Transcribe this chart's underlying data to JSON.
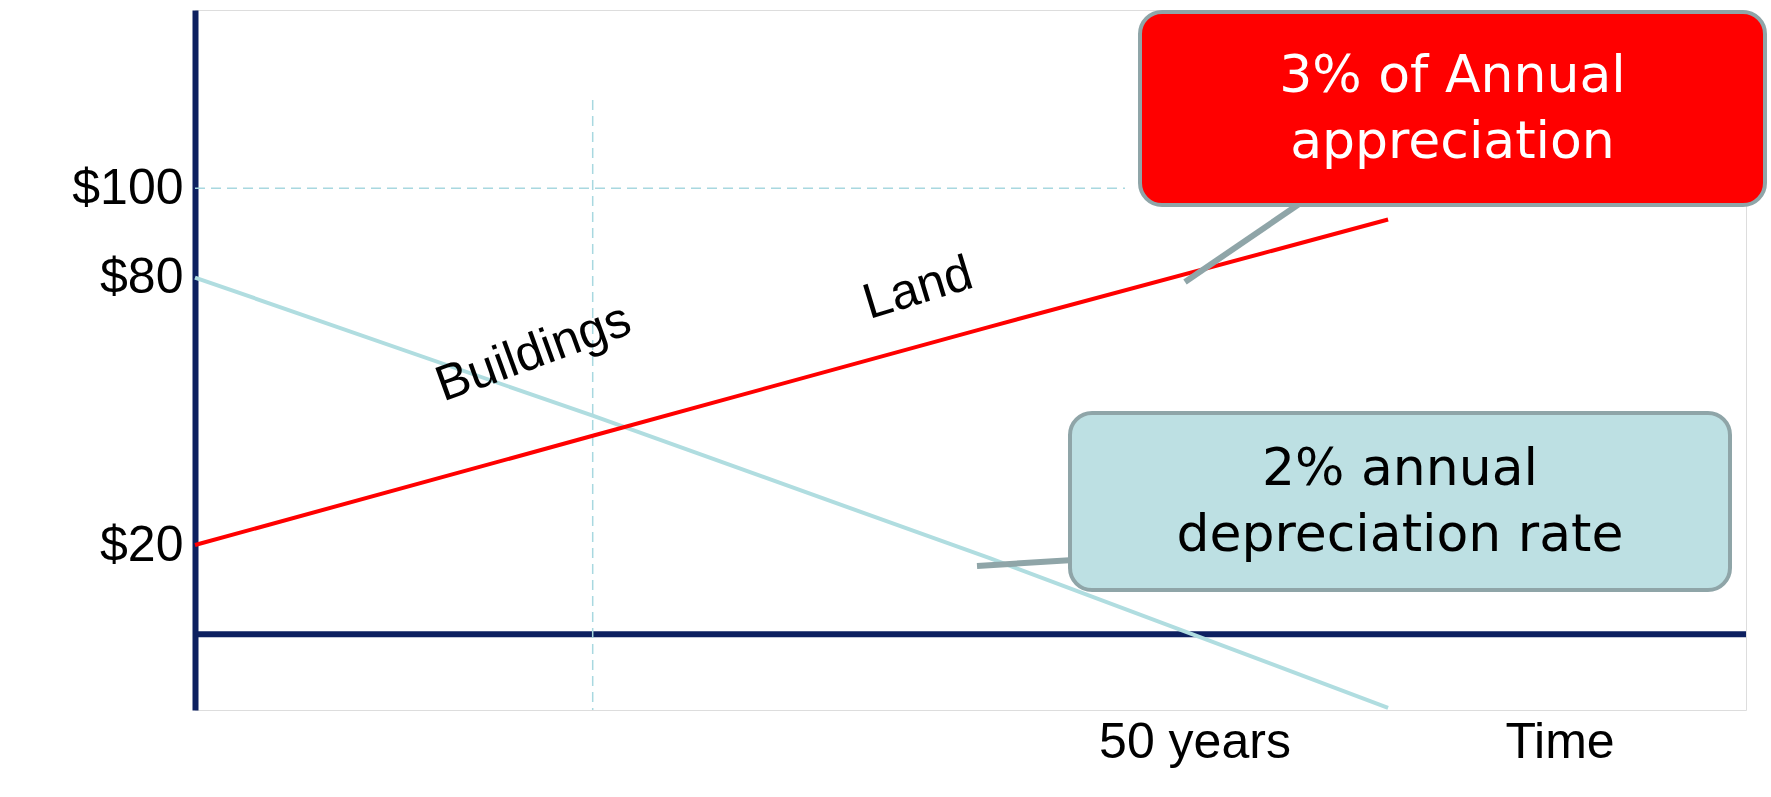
{
  "chart_data": {
    "type": "line",
    "xlabel": "Time",
    "ylim": [
      -17,
      140
    ],
    "categories": [
      null,
      null,
      null,
      null
    ],
    "yticks": [
      {
        "value": 20,
        "label": "$20"
      },
      {
        "value": 80,
        "label": "$80"
      },
      {
        "value": 100,
        "label": "$100"
      }
    ],
    "series": [
      {
        "name": "Buildings",
        "color": "#b0dde0",
        "values": [
          80,
          49,
          17,
          -16.5
        ]
      },
      {
        "name": "Land",
        "color": "#ff0000",
        "values": [
          20,
          44.5,
          69,
          93
        ]
      }
    ],
    "ref_lines": [
      {
        "axis": "y",
        "value": 100,
        "color": "#a8d8e0",
        "line_style": "dashed"
      }
    ],
    "annotations": [
      "3% of Annual appreciation",
      "2% annual depreciation rate",
      "50 years"
    ],
    "grid": false,
    "marker": "none",
    "line_style": "solid"
  }
}
